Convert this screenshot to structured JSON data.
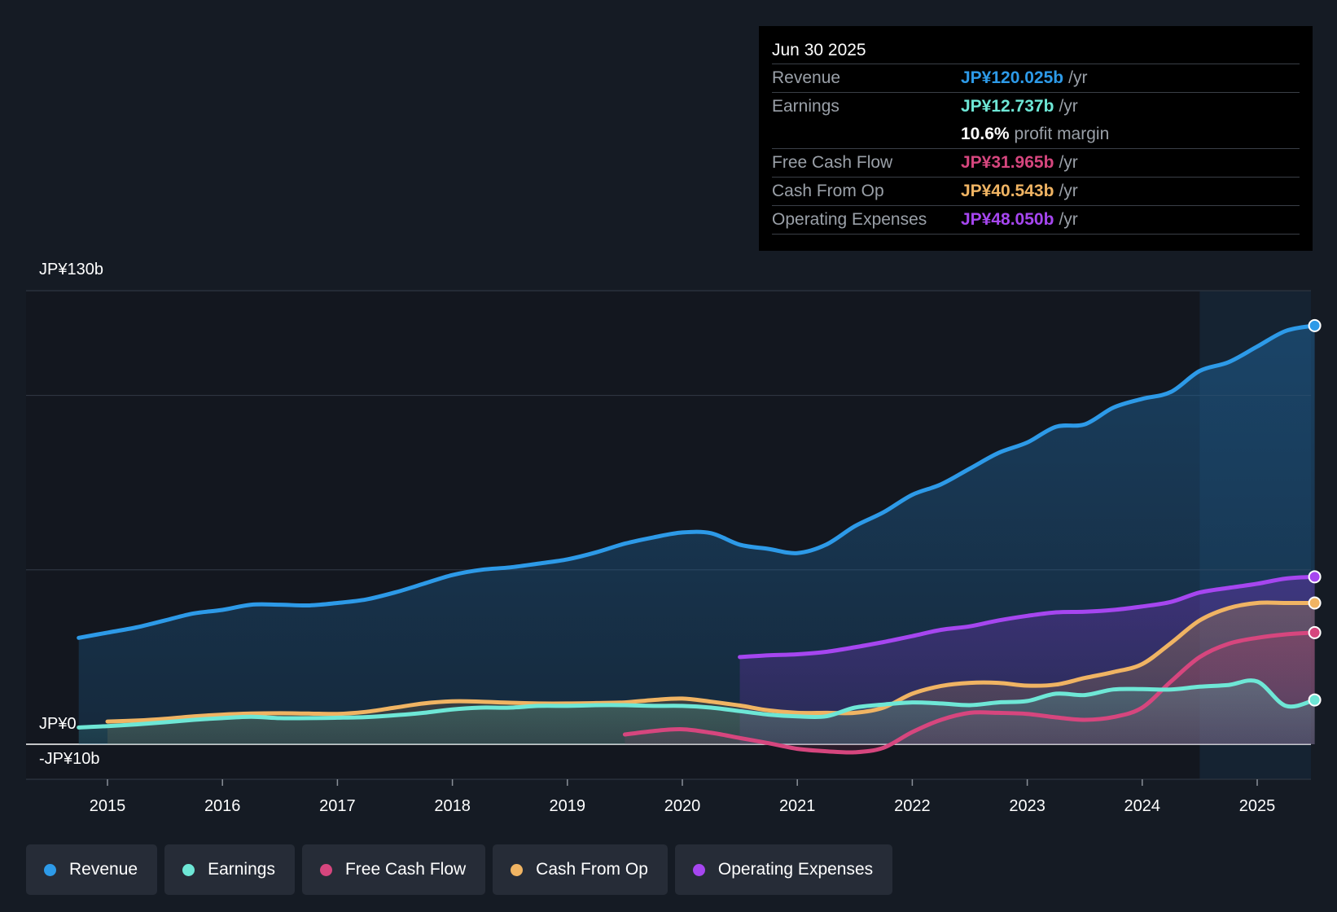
{
  "tooltip": {
    "date": "Jun 30 2025",
    "rows": [
      {
        "label": "Revenue",
        "value": "JP¥120.025b",
        "unit": "/yr",
        "color": "#2d9ae8"
      },
      {
        "label": "Earnings",
        "value": "JP¥12.737b",
        "unit": "/yr",
        "color": "#6ee7d6"
      },
      {
        "label": "",
        "value": "10.6%",
        "unit": "profit margin",
        "color": "#ffffff"
      },
      {
        "label": "Free Cash Flow",
        "value": "JP¥31.965b",
        "unit": "/yr",
        "color": "#d6467e"
      },
      {
        "label": "Cash From Op",
        "value": "JP¥40.543b",
        "unit": "/yr",
        "color": "#f0b463"
      },
      {
        "label": "Operating Expenses",
        "value": "JP¥48.050b",
        "unit": "/yr",
        "color": "#a646f0"
      }
    ]
  },
  "legend": [
    {
      "label": "Revenue",
      "color": "#2d9ae8"
    },
    {
      "label": "Earnings",
      "color": "#6ee7d6"
    },
    {
      "label": "Free Cash Flow",
      "color": "#d6467e"
    },
    {
      "label": "Cash From Op",
      "color": "#f0b463"
    },
    {
      "label": "Operating Expenses",
      "color": "#a646f0"
    }
  ],
  "chart_data": {
    "type": "area",
    "ylim": [
      -10,
      130
    ],
    "y_tick_labels": [
      {
        "value": 130,
        "label": "JP¥130b"
      },
      {
        "value": 0,
        "label": "JP¥0"
      },
      {
        "value": -10,
        "label": "-JP¥10b"
      }
    ],
    "gridlines": [
      130,
      100,
      50,
      0,
      -10
    ],
    "x_ticks": [
      2015,
      2016,
      2017,
      2018,
      2019,
      2020,
      2021,
      2022,
      2023,
      2024,
      2025
    ],
    "xlim": [
      2014.3,
      2025.5
    ],
    "highlight_from": 2024.5,
    "series": [
      {
        "name": "Revenue",
        "color": "#2d9ae8",
        "fill": true,
        "x": [
          2014.75,
          2015.0,
          2015.25,
          2015.5,
          2015.75,
          2016.0,
          2016.25,
          2016.5,
          2016.75,
          2017.0,
          2017.25,
          2017.5,
          2017.75,
          2018.0,
          2018.25,
          2018.5,
          2018.75,
          2019.0,
          2019.25,
          2019.5,
          2019.75,
          2020.0,
          2020.25,
          2020.5,
          2020.75,
          2021.0,
          2021.25,
          2021.5,
          2021.75,
          2022.0,
          2022.25,
          2022.5,
          2022.75,
          2023.0,
          2023.25,
          2023.5,
          2023.75,
          2024.0,
          2024.25,
          2024.5,
          2024.75,
          2025.0,
          2025.25,
          2025.5
        ],
        "values": [
          30.5,
          32.0,
          33.5,
          35.5,
          37.5,
          38.5,
          40.0,
          40.0,
          39.8,
          40.5,
          41.5,
          43.5,
          46.0,
          48.5,
          50.0,
          50.7,
          51.8,
          53.0,
          55.0,
          57.5,
          59.3,
          60.7,
          60.5,
          57.2,
          56.0,
          54.8,
          57.2,
          62.5,
          66.5,
          71.5,
          74.5,
          79.0,
          83.5,
          86.5,
          91.0,
          91.7,
          96.5,
          99.0,
          101.0,
          107.0,
          109.5,
          114.0,
          118.5,
          120.0
        ]
      },
      {
        "name": "Operating Expenses",
        "color": "#a646f0",
        "fill": true,
        "x": [
          2020.5,
          2020.75,
          2021.0,
          2021.25,
          2021.5,
          2021.75,
          2022.0,
          2022.25,
          2022.5,
          2022.75,
          2023.0,
          2023.25,
          2023.5,
          2023.75,
          2024.0,
          2024.25,
          2024.5,
          2024.75,
          2025.0,
          2025.25,
          2025.5
        ],
        "values": [
          25.0,
          25.5,
          25.8,
          26.5,
          27.8,
          29.3,
          31.0,
          32.8,
          33.8,
          35.5,
          36.8,
          37.8,
          38.0,
          38.5,
          39.5,
          40.8,
          43.5,
          44.8,
          46.0,
          47.5,
          48.0
        ]
      },
      {
        "name": "Cash From Op",
        "color": "#f0b463",
        "fill": true,
        "x": [
          2015.0,
          2015.25,
          2015.5,
          2015.75,
          2016.0,
          2016.25,
          2016.5,
          2016.75,
          2017.0,
          2017.25,
          2017.5,
          2017.75,
          2018.0,
          2018.25,
          2018.5,
          2018.75,
          2019.0,
          2019.25,
          2019.5,
          2019.75,
          2020.0,
          2020.25,
          2020.5,
          2020.75,
          2021.0,
          2021.25,
          2021.5,
          2021.75,
          2022.0,
          2022.25,
          2022.5,
          2022.75,
          2023.0,
          2023.25,
          2023.5,
          2023.75,
          2024.0,
          2024.25,
          2024.5,
          2024.75,
          2025.0,
          2025.25,
          2025.5
        ],
        "values": [
          6.5,
          6.8,
          7.3,
          8.0,
          8.5,
          8.8,
          8.9,
          8.8,
          8.7,
          9.3,
          10.5,
          11.7,
          12.3,
          12.2,
          11.9,
          11.7,
          11.7,
          11.8,
          12.0,
          12.7,
          13.1,
          12.2,
          11.1,
          9.7,
          9.0,
          9.0,
          9.0,
          10.5,
          14.5,
          16.7,
          17.6,
          17.6,
          16.8,
          17.1,
          19.0,
          20.7,
          23.0,
          29.0,
          35.5,
          39.0,
          40.5,
          40.5,
          40.5
        ]
      },
      {
        "name": "Free Cash Flow",
        "color": "#d6467e",
        "fill": true,
        "x": [
          2019.5,
          2019.75,
          2020.0,
          2020.25,
          2020.5,
          2020.75,
          2021.0,
          2021.25,
          2021.5,
          2021.75,
          2022.0,
          2022.25,
          2022.5,
          2022.75,
          2023.0,
          2023.25,
          2023.5,
          2023.75,
          2024.0,
          2024.25,
          2024.5,
          2024.75,
          2025.0,
          2025.25,
          2025.5
        ],
        "values": [
          2.8,
          3.8,
          4.3,
          3.3,
          1.8,
          0.3,
          -1.3,
          -2.0,
          -2.3,
          -1.0,
          3.5,
          7.0,
          9.0,
          9.0,
          8.7,
          7.7,
          7.0,
          7.8,
          10.5,
          18.0,
          25.0,
          28.8,
          30.5,
          31.5,
          32.0
        ]
      },
      {
        "name": "Earnings",
        "color": "#6ee7d6",
        "fill": true,
        "x": [
          2014.75,
          2015.0,
          2015.25,
          2015.5,
          2015.75,
          2016.0,
          2016.25,
          2016.5,
          2016.75,
          2017.0,
          2017.25,
          2017.5,
          2017.75,
          2018.0,
          2018.25,
          2018.5,
          2018.75,
          2019.0,
          2019.25,
          2019.5,
          2019.75,
          2020.0,
          2020.25,
          2020.5,
          2020.75,
          2021.0,
          2021.25,
          2021.5,
          2021.75,
          2022.0,
          2022.25,
          2022.5,
          2022.75,
          2023.0,
          2023.25,
          2023.5,
          2023.75,
          2024.0,
          2024.25,
          2024.5,
          2024.75,
          2025.0,
          2025.25,
          2025.5
        ],
        "values": [
          4.8,
          5.2,
          5.7,
          6.3,
          7.0,
          7.5,
          7.9,
          7.5,
          7.5,
          7.6,
          7.8,
          8.3,
          9.0,
          10.0,
          10.5,
          10.5,
          11.0,
          11.0,
          11.2,
          11.2,
          11.0,
          11.0,
          10.5,
          9.5,
          8.5,
          8.0,
          8.0,
          10.5,
          11.4,
          12.0,
          11.7,
          11.2,
          12.0,
          12.4,
          14.5,
          14.1,
          15.7,
          15.8,
          15.7,
          16.5,
          17.0,
          18.0,
          11.0,
          12.7
        ]
      }
    ]
  }
}
